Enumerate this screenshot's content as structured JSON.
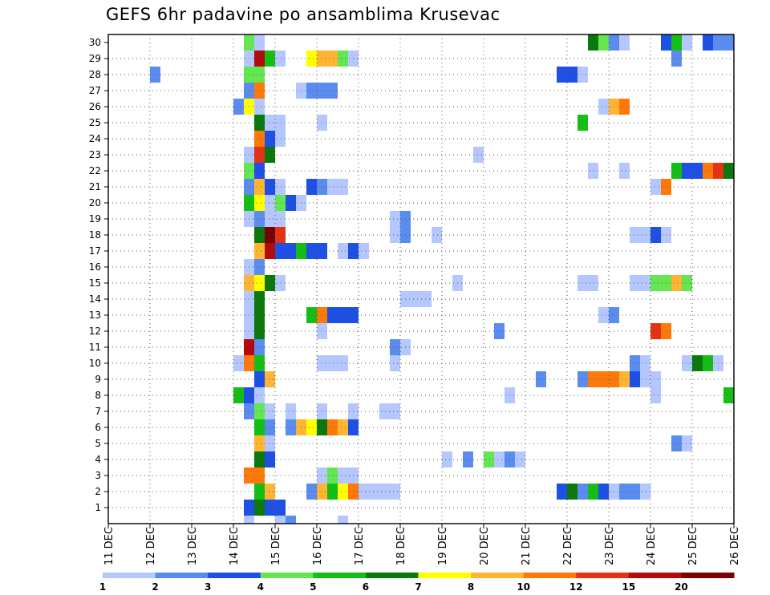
{
  "chart_data": {
    "type": "heatmap",
    "title": "GEFS 6hr padavine po ansamblima Krusevac",
    "y_tick_labels": [
      "1",
      "2",
      "3",
      "4",
      "5",
      "6",
      "7",
      "8",
      "9",
      "10",
      "11",
      "12",
      "13",
      "14",
      "15",
      "16",
      "17",
      "18",
      "19",
      "20",
      "21",
      "22",
      "23",
      "24",
      "25",
      "26",
      "27",
      "28",
      "29",
      "30"
    ],
    "x_tick_labels": [
      "11 DEC",
      "12 DEC",
      "13 DEC",
      "14 DEC",
      "15 DEC",
      "16 DEC",
      "17 DEC",
      "18 DEC",
      "19 DEC",
      "20 DEC",
      "21 DEC",
      "22 DEC",
      "23 DEC",
      "24 DEC",
      "25 DEC",
      "26 DEC"
    ],
    "x_range_days": [
      11,
      26
    ],
    "y_range_members": [
      0,
      30
    ],
    "grid": true,
    "legend_position": "bottom",
    "legend_labels": [
      "1",
      "2",
      "3",
      "4",
      "5",
      "6",
      "7",
      "8",
      "10",
      "12",
      "15",
      "20"
    ],
    "legend_colors": [
      "#b4c8ff",
      "#5a8cf0",
      "#1e50e6",
      "#64e650",
      "#14be14",
      "#0a780a",
      "#ffff00",
      "#ffb432",
      "#ff780a",
      "#e63214",
      "#b40a0a",
      "#780000"
    ],
    "cells": [
      {
        "m": 1,
        "c": [
          [
            14.25,
            4,
            "#1e50e6"
          ],
          [
            14.5,
            1,
            "#0a780a"
          ]
        ]
      },
      {
        "m": 2,
        "c": [
          [
            14.5,
            1,
            "#14be14"
          ],
          [
            14.75,
            1,
            "#ffb432"
          ],
          [
            15.75,
            1,
            "#5a8cf0"
          ],
          [
            16,
            1,
            "#ffb432"
          ],
          [
            16.25,
            1,
            "#14be14"
          ],
          [
            16.5,
            1,
            "#ffff00"
          ],
          [
            16.75,
            2,
            "#ff780a"
          ],
          [
            17,
            4,
            "#b4c8ff"
          ],
          [
            21.75,
            1,
            "#1e50e6"
          ],
          [
            22,
            1,
            "#0a780a"
          ],
          [
            22.25,
            1,
            "#5a8cf0"
          ],
          [
            22.5,
            1,
            "#14be14"
          ],
          [
            22.75,
            1,
            "#1e50e6"
          ],
          [
            23,
            2,
            "#b4c8ff"
          ],
          [
            23.25,
            2,
            "#5a8cf0"
          ],
          [
            23.75,
            1,
            "#b4c8ff"
          ]
        ]
      },
      {
        "m": 3,
        "c": [
          [
            14.25,
            2,
            "#ff780a"
          ],
          [
            16,
            1,
            "#b4c8ff"
          ],
          [
            16.25,
            1,
            "#64e650"
          ],
          [
            16.5,
            1,
            "#b4c8ff"
          ],
          [
            16.75,
            1,
            "#b4c8ff"
          ]
        ]
      },
      {
        "m": 4,
        "c": [
          [
            14.5,
            1,
            "#0a780a"
          ],
          [
            14.75,
            1,
            "#1e50e6"
          ],
          [
            19,
            1,
            "#b4c8ff"
          ],
          [
            19.5,
            1,
            "#5a8cf0"
          ],
          [
            20,
            1,
            "#64e650"
          ],
          [
            20.25,
            1,
            "#b4c8ff"
          ],
          [
            20.5,
            1,
            "#5a8cf0"
          ],
          [
            20.75,
            1,
            "#b4c8ff"
          ]
        ]
      },
      {
        "m": 5,
        "c": [
          [
            14.5,
            1,
            "#ffb432"
          ],
          [
            14.75,
            1,
            "#b4c8ff"
          ],
          [
            24.5,
            1,
            "#5a8cf0"
          ],
          [
            24.75,
            1,
            "#b4c8ff"
          ]
        ]
      },
      {
        "m": 6,
        "c": [
          [
            14.5,
            1,
            "#14be14"
          ],
          [
            14.75,
            1,
            "#5a8cf0"
          ],
          [
            15.25,
            1,
            "#5a8cf0"
          ],
          [
            15.5,
            1,
            "#ffb432"
          ],
          [
            15.75,
            1,
            "#ffff00"
          ],
          [
            16,
            1,
            "#0a780a"
          ],
          [
            16.25,
            1,
            "#ff780a"
          ],
          [
            16.5,
            1,
            "#ffb432"
          ],
          [
            16.75,
            1,
            "#1e50e6"
          ]
        ]
      },
      {
        "m": 7,
        "c": [
          [
            14.25,
            1,
            "#5a8cf0"
          ],
          [
            14.5,
            1,
            "#64e650"
          ],
          [
            14.75,
            1,
            "#b4c8ff"
          ],
          [
            15.25,
            1,
            "#b4c8ff"
          ],
          [
            16,
            1,
            "#b4c8ff"
          ],
          [
            16.75,
            1,
            "#b4c8ff"
          ],
          [
            17.5,
            2,
            "#b4c8ff"
          ]
        ]
      },
      {
        "m": 8,
        "c": [
          [
            14,
            1,
            "#14be14"
          ],
          [
            14.25,
            1,
            "#1e50e6"
          ],
          [
            14.5,
            1,
            "#b4c8ff"
          ],
          [
            20.5,
            1,
            "#b4c8ff"
          ],
          [
            24,
            1,
            "#b4c8ff"
          ],
          [
            25.75,
            1,
            "#14be14"
          ]
        ]
      },
      {
        "m": 9,
        "c": [
          [
            14.5,
            1,
            "#1e50e6"
          ],
          [
            14.75,
            1,
            "#ffb432"
          ],
          [
            21.25,
            1,
            "#5a8cf0"
          ],
          [
            22.25,
            1,
            "#5a8cf0"
          ],
          [
            22.5,
            3,
            "#ff780a"
          ],
          [
            23.25,
            1,
            "#ffb432"
          ],
          [
            23.5,
            1,
            "#1e50e6"
          ],
          [
            23.75,
            1,
            "#b4c8ff"
          ],
          [
            24,
            1,
            "#b4c8ff"
          ]
        ]
      },
      {
        "m": 10,
        "c": [
          [
            14,
            1,
            "#b4c8ff"
          ],
          [
            14.25,
            1,
            "#ff780a"
          ],
          [
            14.5,
            1,
            "#14be14"
          ],
          [
            16,
            3,
            "#b4c8ff"
          ],
          [
            17.75,
            1,
            "#b4c8ff"
          ],
          [
            23.5,
            1,
            "#5a8cf0"
          ],
          [
            23.75,
            1,
            "#b4c8ff"
          ],
          [
            24.75,
            1,
            "#b4c8ff"
          ],
          [
            25,
            1,
            "#0a780a"
          ],
          [
            25.25,
            1,
            "#14be14"
          ],
          [
            25.5,
            1,
            "#b4c8ff"
          ]
        ]
      },
      {
        "m": 11,
        "c": [
          [
            14.25,
            1,
            "#b40a0a"
          ],
          [
            14.5,
            1,
            "#5a8cf0"
          ],
          [
            17.75,
            1,
            "#5a8cf0"
          ],
          [
            18,
            1,
            "#b4c8ff"
          ]
        ]
      },
      {
        "m": 12,
        "c": [
          [
            14.25,
            1,
            "#b4c8ff"
          ],
          [
            14.5,
            1,
            "#0a780a"
          ],
          [
            16,
            1,
            "#b4c8ff"
          ],
          [
            20.25,
            1,
            "#5a8cf0"
          ],
          [
            24,
            1,
            "#e63214"
          ],
          [
            24.25,
            1,
            "#ff780a"
          ]
        ]
      },
      {
        "m": 13,
        "c": [
          [
            14.25,
            1,
            "#b4c8ff"
          ],
          [
            14.5,
            1,
            "#0a780a"
          ],
          [
            15.75,
            1,
            "#14be14"
          ],
          [
            16,
            1,
            "#ff780a"
          ],
          [
            16.25,
            3,
            "#1e50e6"
          ],
          [
            22.75,
            1,
            "#b4c8ff"
          ],
          [
            23,
            1,
            "#5a8cf0"
          ]
        ]
      },
      {
        "m": 14,
        "c": [
          [
            14.25,
            1,
            "#b4c8ff"
          ],
          [
            14.5,
            1,
            "#0a780a"
          ],
          [
            18,
            3,
            "#b4c8ff"
          ]
        ]
      },
      {
        "m": 15,
        "c": [
          [
            14.25,
            1,
            "#ffb432"
          ],
          [
            14.5,
            1,
            "#ffff00"
          ],
          [
            14.75,
            1,
            "#0a780a"
          ],
          [
            15,
            1,
            "#b4c8ff"
          ],
          [
            19.25,
            1,
            "#b4c8ff"
          ],
          [
            22.25,
            2,
            "#b4c8ff"
          ],
          [
            23.5,
            2,
            "#b4c8ff"
          ],
          [
            24,
            2,
            "#64e650"
          ],
          [
            24.5,
            1,
            "#ffb432"
          ],
          [
            24.75,
            1,
            "#64e650"
          ]
        ]
      },
      {
        "m": 16,
        "c": [
          [
            14.25,
            1,
            "#b4c8ff"
          ],
          [
            14.5,
            1,
            "#5a8cf0"
          ]
        ]
      },
      {
        "m": 17,
        "c": [
          [
            14.5,
            1,
            "#ffb432"
          ],
          [
            14.75,
            1,
            "#b40a0a"
          ],
          [
            15,
            2,
            "#1e50e6"
          ],
          [
            15.5,
            1,
            "#14be14"
          ],
          [
            15.75,
            2,
            "#1e50e6"
          ],
          [
            16.5,
            1,
            "#b4c8ff"
          ],
          [
            16.75,
            1,
            "#1e50e6"
          ],
          [
            17,
            1,
            "#b4c8ff"
          ]
        ]
      },
      {
        "m": 18,
        "c": [
          [
            14.5,
            1,
            "#0a780a"
          ],
          [
            14.75,
            1,
            "#780000"
          ],
          [
            15,
            1,
            "#e63214"
          ],
          [
            17.75,
            1,
            "#b4c8ff"
          ],
          [
            18,
            1,
            "#5a8cf0"
          ],
          [
            18.75,
            1,
            "#b4c8ff"
          ],
          [
            23.5,
            2,
            "#b4c8ff"
          ],
          [
            24,
            1,
            "#1e50e6"
          ],
          [
            24.25,
            1,
            "#b4c8ff"
          ]
        ]
      },
      {
        "m": 19,
        "c": [
          [
            14.25,
            1,
            "#b4c8ff"
          ],
          [
            14.5,
            1,
            "#5a8cf0"
          ],
          [
            14.75,
            2,
            "#b4c8ff"
          ],
          [
            17.75,
            1,
            "#b4c8ff"
          ],
          [
            18,
            1,
            "#5a8cf0"
          ]
        ]
      },
      {
        "m": 20,
        "c": [
          [
            14.25,
            1,
            "#14be14"
          ],
          [
            14.5,
            1,
            "#ffff00"
          ],
          [
            14.75,
            1,
            "#b4c8ff"
          ],
          [
            15,
            1,
            "#64e650"
          ],
          [
            15.25,
            1,
            "#1e50e6"
          ],
          [
            15.5,
            1,
            "#b4c8ff"
          ]
        ]
      },
      {
        "m": 21,
        "c": [
          [
            14.25,
            1,
            "#5a8cf0"
          ],
          [
            14.5,
            1,
            "#ffb432"
          ],
          [
            14.75,
            1,
            "#1e50e6"
          ],
          [
            15,
            1,
            "#b4c8ff"
          ],
          [
            15.75,
            1,
            "#1e50e6"
          ],
          [
            16,
            1,
            "#5a8cf0"
          ],
          [
            16.25,
            2,
            "#b4c8ff"
          ],
          [
            24,
            1,
            "#b4c8ff"
          ],
          [
            24.25,
            1,
            "#ff780a"
          ]
        ]
      },
      {
        "m": 22,
        "c": [
          [
            14.25,
            1,
            "#64e650"
          ],
          [
            14.5,
            1,
            "#1e50e6"
          ],
          [
            22.5,
            1,
            "#b4c8ff"
          ],
          [
            23.25,
            1,
            "#b4c8ff"
          ],
          [
            24.5,
            1,
            "#14be14"
          ],
          [
            24.75,
            2,
            "#1e50e6"
          ],
          [
            25.25,
            1,
            "#ff780a"
          ],
          [
            25.5,
            1,
            "#e63214"
          ],
          [
            25.75,
            1,
            "#0a780a"
          ]
        ]
      },
      {
        "m": 23,
        "c": [
          [
            14.25,
            1,
            "#b4c8ff"
          ],
          [
            14.5,
            1,
            "#e63214"
          ],
          [
            14.75,
            1,
            "#0a780a"
          ],
          [
            19.75,
            1,
            "#b4c8ff"
          ]
        ]
      },
      {
        "m": 24,
        "c": [
          [
            14.5,
            1,
            "#ff780a"
          ],
          [
            14.75,
            1,
            "#1e50e6"
          ],
          [
            15,
            1,
            "#b4c8ff"
          ]
        ]
      },
      {
        "m": 25,
        "c": [
          [
            14.5,
            1,
            "#0a780a"
          ],
          [
            14.75,
            2,
            "#b4c8ff"
          ],
          [
            16,
            1,
            "#b4c8ff"
          ],
          [
            22.25,
            1,
            "#14be14"
          ]
        ]
      },
      {
        "m": 26,
        "c": [
          [
            14,
            1,
            "#5a8cf0"
          ],
          [
            14.25,
            1,
            "#ffff00"
          ],
          [
            14.5,
            1,
            "#b4c8ff"
          ],
          [
            22.75,
            1,
            "#b4c8ff"
          ],
          [
            23,
            1,
            "#ffb432"
          ],
          [
            23.25,
            1,
            "#ff780a"
          ]
        ]
      },
      {
        "m": 27,
        "c": [
          [
            14.25,
            1,
            "#5a8cf0"
          ],
          [
            14.5,
            1,
            "#ff780a"
          ],
          [
            15.5,
            1,
            "#b4c8ff"
          ],
          [
            15.75,
            3,
            "#5a8cf0"
          ]
        ]
      },
      {
        "m": 28,
        "c": [
          [
            12,
            1,
            "#5a8cf0"
          ],
          [
            14.25,
            2,
            "#64e650"
          ],
          [
            21.75,
            2,
            "#1e50e6"
          ],
          [
            22.25,
            1,
            "#b4c8ff"
          ]
        ]
      },
      {
        "m": 29,
        "c": [
          [
            14.25,
            1,
            "#b4c8ff"
          ],
          [
            14.5,
            1,
            "#b40a0a"
          ],
          [
            14.75,
            1,
            "#14be14"
          ],
          [
            15,
            1,
            "#b4c8ff"
          ],
          [
            15.75,
            1,
            "#ffff00"
          ],
          [
            16,
            2,
            "#ffb432"
          ],
          [
            16.5,
            1,
            "#64e650"
          ],
          [
            16.75,
            1,
            "#b4c8ff"
          ],
          [
            24.5,
            1,
            "#5a8cf0"
          ]
        ]
      },
      {
        "m": 30,
        "c": [
          [
            14.25,
            1,
            "#64e650"
          ],
          [
            14.5,
            1,
            "#b4c8ff"
          ],
          [
            22.5,
            1,
            "#0a780a"
          ],
          [
            22.75,
            1,
            "#64e650"
          ],
          [
            23,
            1,
            "#5a8cf0"
          ],
          [
            23.25,
            1,
            "#b4c8ff"
          ],
          [
            24.25,
            1,
            "#1e50e6"
          ],
          [
            24.5,
            1,
            "#14be14"
          ],
          [
            24.75,
            1,
            "#b4c8ff"
          ],
          [
            25.25,
            1,
            "#1e50e6"
          ],
          [
            25.5,
            2,
            "#5a8cf0"
          ]
        ]
      },
      {
        "m": 0,
        "c": [
          [
            14.25,
            1,
            "#b4c8ff"
          ],
          [
            15,
            1,
            "#b4c8ff"
          ],
          [
            15.25,
            1,
            "#5a8cf0"
          ],
          [
            16.5,
            1,
            "#b4c8ff"
          ]
        ]
      }
    ]
  }
}
